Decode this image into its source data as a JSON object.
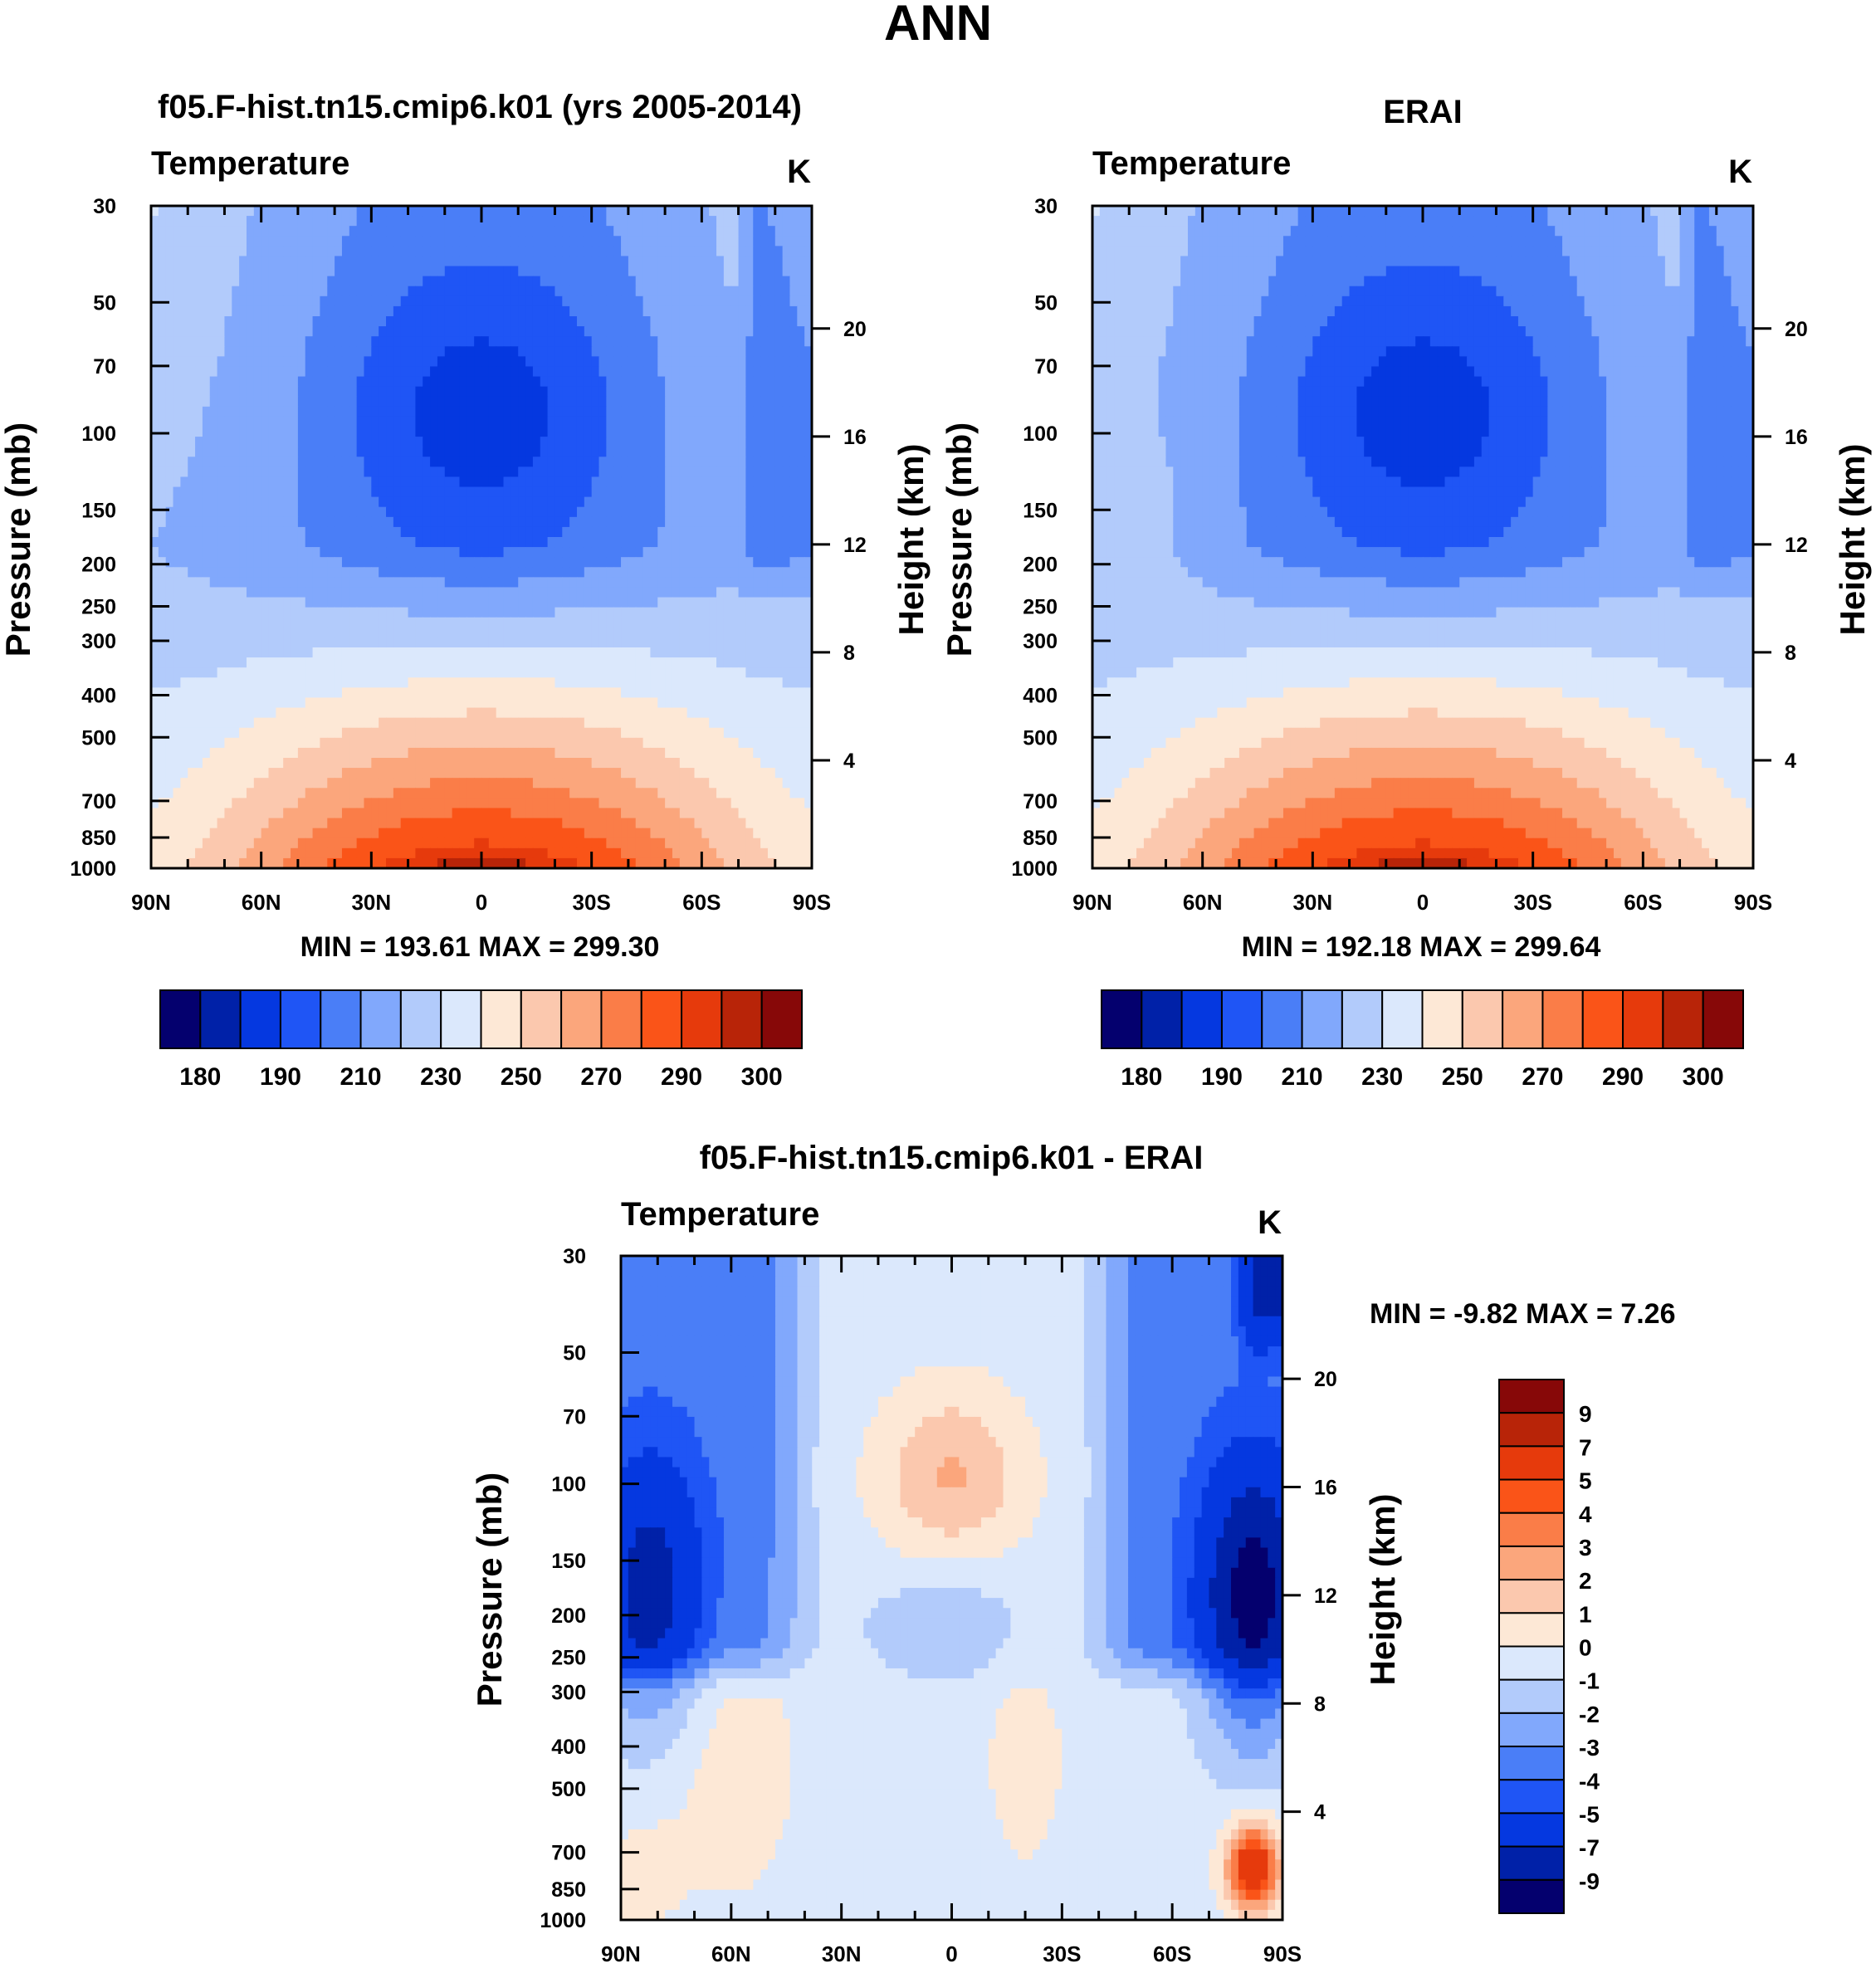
{
  "page_title": "ANN",
  "chart_data": [
    {
      "type": "heatmap",
      "panel": "model",
      "title": "f05.F-hist.tn15.cmip6.k01 (yrs 2005-2014)",
      "left_label": "Temperature",
      "unit_label": "K",
      "xlabel": "",
      "ylabel": "Pressure (mb)",
      "y2label": "Height (km)",
      "x_ticks": [
        "90N",
        "60N",
        "30N",
        "0",
        "30S",
        "60S",
        "90S"
      ],
      "y_ticks": [
        30,
        50,
        70,
        100,
        150,
        200,
        250,
        300,
        400,
        500,
        700,
        850,
        1000
      ],
      "y2_ticks": [
        4,
        8,
        12,
        16,
        20
      ],
      "min_max_text": "MIN = 193.61  MAX = 299.30",
      "levels": [
        180,
        185,
        190,
        200,
        210,
        220,
        230,
        240,
        250,
        260,
        270,
        280,
        290,
        295,
        300
      ],
      "colorbar_labels": [
        "180",
        "190",
        "210",
        "230",
        "250",
        "270",
        "290",
        "300"
      ],
      "colors": [
        "#04006e",
        "#0021a8",
        "#0538e0",
        "#1f55f5",
        "#4a7ef7",
        "#81a8fc",
        "#b2cbfb",
        "#dbe8fc",
        "#fde8d6",
        "#fbc8ae",
        "#fba67c",
        "#fa7d48",
        "#fa5418",
        "#e63a0c",
        "#b82408",
        "#870808"
      ],
      "min": 193.61,
      "max": 299.3
    },
    {
      "type": "heatmap",
      "panel": "obs",
      "title": "ERAI",
      "left_label": "Temperature",
      "unit_label": "K",
      "xlabel": "",
      "ylabel": "Pressure (mb)",
      "y2label": "Height (km)",
      "x_ticks": [
        "90N",
        "60N",
        "30N",
        "0",
        "30S",
        "60S",
        "90S"
      ],
      "y_ticks": [
        30,
        50,
        70,
        100,
        150,
        200,
        250,
        300,
        400,
        500,
        700,
        850,
        1000
      ],
      "y2_ticks": [
        4,
        8,
        12,
        16,
        20
      ],
      "min_max_text": "MIN = 192.18  MAX = 299.64",
      "levels": [
        180,
        185,
        190,
        200,
        210,
        220,
        230,
        240,
        250,
        260,
        270,
        280,
        290,
        295,
        300
      ],
      "colorbar_labels": [
        "180",
        "190",
        "210",
        "230",
        "250",
        "270",
        "290",
        "300"
      ],
      "colors": [
        "#04006e",
        "#0021a8",
        "#0538e0",
        "#1f55f5",
        "#4a7ef7",
        "#81a8fc",
        "#b2cbfb",
        "#dbe8fc",
        "#fde8d6",
        "#fbc8ae",
        "#fba67c",
        "#fa7d48",
        "#fa5418",
        "#e63a0c",
        "#b82408",
        "#870808"
      ],
      "min": 192.18,
      "max": 299.64
    },
    {
      "type": "heatmap",
      "panel": "difference",
      "title": "f05.F-hist.tn15.cmip6.k01 - ERAI",
      "left_label": "Temperature",
      "unit_label": "K",
      "xlabel": "",
      "ylabel": "Pressure (mb)",
      "y2label": "Height (km)",
      "x_ticks": [
        "90N",
        "60N",
        "30N",
        "0",
        "30S",
        "60S",
        "90S"
      ],
      "y_ticks": [
        30,
        50,
        70,
        100,
        150,
        200,
        250,
        300,
        400,
        500,
        700,
        850,
        1000
      ],
      "y2_ticks": [
        4,
        8,
        12,
        16,
        20
      ],
      "min_max_text": "MIN =  -9.82  MAX =   7.26",
      "levels": [
        9,
        7,
        5,
        4,
        3,
        2,
        1,
        0,
        -1,
        -2,
        -3,
        -4,
        -5,
        -7,
        -9
      ],
      "colorbar_labels": [
        "9",
        "7",
        "5",
        "4",
        "3",
        "2",
        "1",
        "0",
        "-1",
        "-2",
        "-3",
        "-4",
        "-5",
        "-7",
        "-9"
      ],
      "colors": [
        "#870808",
        "#b82408",
        "#e63a0c",
        "#fa5418",
        "#fa7d48",
        "#fba67c",
        "#fbc8ae",
        "#fde8d6",
        "#dbe8fc",
        "#b2cbfb",
        "#81a8fc",
        "#4a7ef7",
        "#1f55f5",
        "#0538e0",
        "#0021a8",
        "#04006e"
      ],
      "min": -9.82,
      "max": 7.26
    }
  ]
}
